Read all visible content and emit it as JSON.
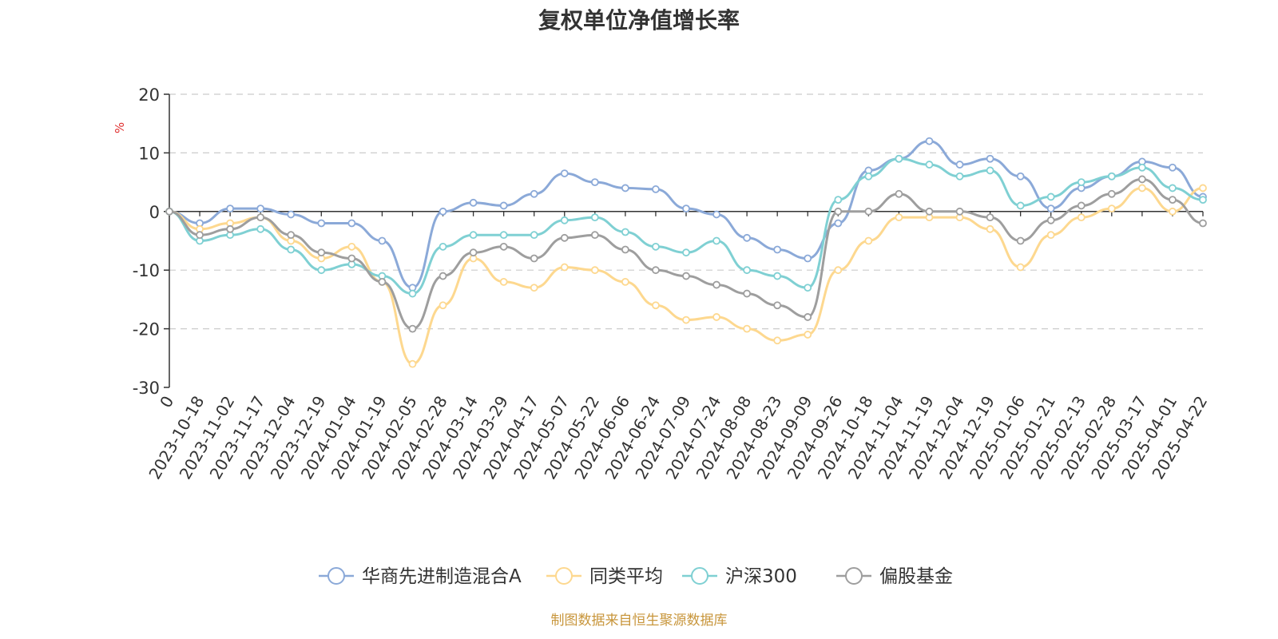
{
  "chart_data": {
    "type": "line",
    "title": "复权单位净值增长率",
    "ylabel": "%",
    "unit_color": "#e03030",
    "ylim": [
      -30,
      20
    ],
    "yticks": [
      20,
      10,
      0,
      -10,
      -20,
      -30
    ],
    "grid": true,
    "legend_position": "bottom",
    "x_tick_labels": [
      "0",
      "2023-10-18",
      "2023-11-02",
      "2023-11-17",
      "2023-12-04",
      "2023-12-19",
      "2024-01-04",
      "2024-01-19",
      "2024-02-05",
      "2024-02-28",
      "2024-03-14",
      "2024-03-29",
      "2024-04-17",
      "2024-05-07",
      "2024-05-22",
      "2024-06-06",
      "2024-06-24",
      "2024-07-09",
      "2024-07-24",
      "2024-08-08",
      "2024-08-23",
      "2024-09-09",
      "2024-09-26",
      "2024-10-18",
      "2024-11-04",
      "2024-11-19",
      "2024-12-04",
      "2024-12-19",
      "2025-01-06",
      "2025-01-21",
      "2025-02-13",
      "2025-02-28",
      "2025-03-17",
      "2025-04-01",
      "2025-04-22"
    ],
    "x": [
      0,
      1,
      2,
      3,
      4,
      5,
      6,
      7,
      8,
      9,
      10,
      11,
      12,
      13,
      14,
      15,
      16,
      17,
      18,
      19,
      20,
      21,
      22,
      23,
      24,
      25,
      26,
      27,
      28,
      29,
      30,
      31,
      32,
      33,
      34
    ],
    "series": [
      {
        "name": "华商先进制造混合A",
        "color": "#8ba9d8",
        "values": [
          0,
          -2,
          0.5,
          0.5,
          -0.5,
          -2,
          -2,
          -5,
          -13,
          0,
          1.5,
          1,
          3,
          6.5,
          5,
          4,
          3.8,
          0.5,
          -0.5,
          -4.5,
          -6.5,
          -8,
          -2,
          7,
          9,
          12,
          8,
          9,
          6,
          0.5,
          4,
          6,
          8.5,
          7.5,
          2.5
        ]
      },
      {
        "name": "同类平均",
        "color": "#fdd88f",
        "values": [
          0,
          -3,
          -2,
          -1,
          -5,
          -8,
          -6,
          -12,
          -26,
          -16,
          -8,
          -12,
          -13,
          -9.5,
          -10,
          -12,
          -16,
          -18.5,
          -18,
          -20,
          -22,
          -21,
          -10,
          -5,
          -1,
          -1,
          -1,
          -3,
          -9.5,
          -4,
          -1,
          0.5,
          4,
          0,
          4
        ]
      },
      {
        "name": "沪深300",
        "color": "#7fd0d3",
        "values": [
          0,
          -5,
          -4,
          -3,
          -6.5,
          -10,
          -9,
          -11,
          -14,
          -6,
          -4,
          -4,
          -4,
          -1.5,
          -1,
          -3.5,
          -6,
          -7,
          -5,
          -10,
          -11,
          -13,
          2,
          6,
          9,
          8,
          6,
          7,
          1,
          2.5,
          5,
          6,
          7.5,
          4,
          2
        ]
      },
      {
        "name": "偏股基金",
        "color": "#9e9e9e",
        "values": [
          0,
          -4,
          -3,
          -1,
          -4,
          -7,
          -8,
          -12,
          -20,
          -11,
          -7,
          -6,
          -8,
          -4.5,
          -4,
          -6.5,
          -10,
          -11,
          -12.5,
          -14,
          -16,
          -18,
          0,
          0,
          3,
          0,
          0,
          -1,
          -5,
          -1.5,
          1,
          3,
          5.5,
          2,
          -2
        ]
      }
    ]
  },
  "footer": {
    "source_text": "制图数据来自恒生聚源数据库"
  }
}
